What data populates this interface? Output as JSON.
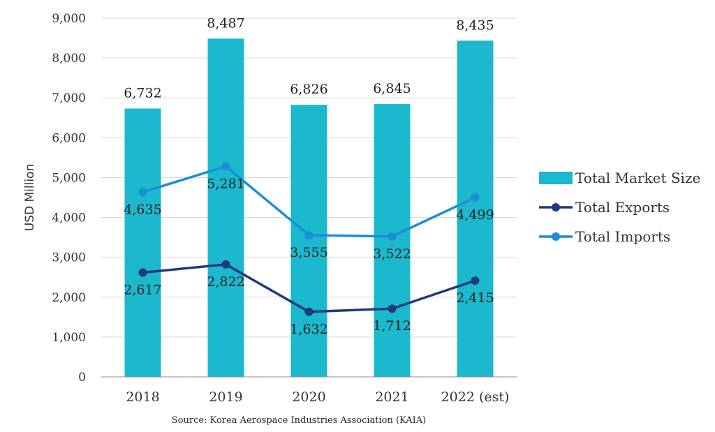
{
  "chart_data": {
    "type": "bar",
    "categories": [
      "2018",
      "2019",
      "2020",
      "2021",
      "2022 (est)"
    ],
    "ylabel": "USD Million",
    "xlabel": "",
    "title": "",
    "ylim": [
      0,
      9000
    ],
    "yticks": [
      0,
      1000,
      2000,
      3000,
      4000,
      5000,
      6000,
      7000,
      8000,
      9000
    ],
    "ytick_labels": [
      "0",
      "1,000",
      "2,000",
      "3,000",
      "4,000",
      "5,000",
      "6,000",
      "7,000",
      "8,000",
      "9,000"
    ],
    "grid": true,
    "legend_position": "right",
    "series": [
      {
        "name": "Total Market Size",
        "kind": "bar",
        "color": "#1CB8CE",
        "values": [
          6732,
          8487,
          6826,
          6845,
          8435
        ],
        "labels": [
          "6,732",
          "8,487",
          "6,826",
          "6,845",
          "8,435"
        ]
      },
      {
        "name": "Total Exports",
        "kind": "line",
        "color": "#1F3A7D",
        "values": [
          2617,
          2822,
          1632,
          1712,
          2415
        ],
        "labels": [
          "2,617",
          "2,822",
          "1,632",
          "1,712",
          "2,415"
        ]
      },
      {
        "name": "Total Imports",
        "kind": "line",
        "color": "#1A8FD6",
        "values": [
          4635,
          5281,
          3555,
          3522,
          4499
        ],
        "labels": [
          "4,635",
          "5,281",
          "3,555",
          "3,522",
          "4,499"
        ]
      }
    ],
    "source": "Source: Korea Aerospace Industries Association (KAIA)"
  }
}
